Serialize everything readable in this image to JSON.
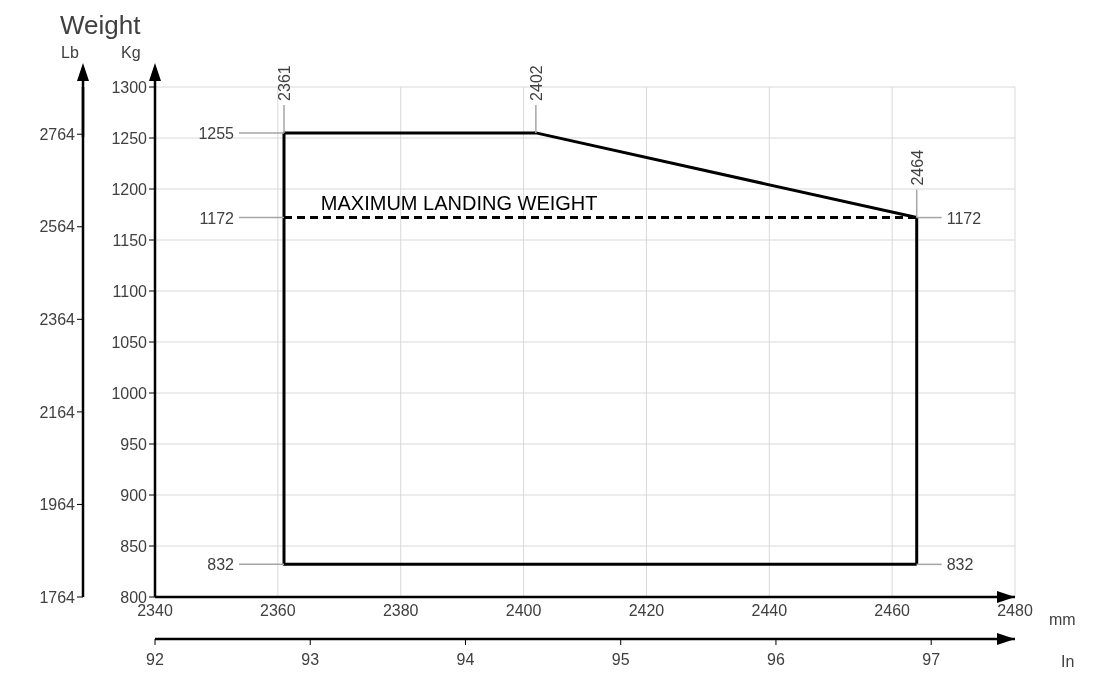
{
  "chart_data": {
    "type": "line",
    "title": "Weight",
    "xlabel": "mm",
    "x2label": "In",
    "ylabel": "Kg",
    "y2label": "Lb",
    "xlim": [
      2340,
      2480
    ],
    "xticks": [
      2340,
      2360,
      2380,
      2400,
      2420,
      2440,
      2460,
      2480
    ],
    "x2lim": [
      92,
      97.54
    ],
    "x2ticks": [
      92,
      93,
      94,
      95,
      96,
      97
    ],
    "ylim": [
      800,
      1300
    ],
    "yticks": [
      800,
      850,
      900,
      950,
      1000,
      1050,
      1100,
      1150,
      1200,
      1250,
      1300
    ],
    "y2lim": [
      1764,
      2866
    ],
    "y2ticks": [
      1764,
      1964,
      2164,
      2364,
      2564,
      2764
    ],
    "grid": true,
    "marker": "none",
    "line_style": "solid",
    "series": [
      {
        "color": "#000000",
        "x": [
          2464,
          2361,
          2361,
          2402,
          2464
        ],
        "values": [
          832,
          832,
          1255,
          1255,
          1172
        ]
      },
      {
        "color": "#000000",
        "x": [
          2464,
          2464
        ],
        "values": [
          1172,
          832
        ]
      },
      {
        "color": "#000000",
        "line_style": "dashed",
        "x": [
          2361,
          2464
        ],
        "values": [
          1172,
          1172
        ]
      }
    ],
    "annotations": [
      {
        "text": "MAXIMUM LANDING WEIGHT",
        "x": 2367,
        "y": 1172
      },
      {
        "text": "2361",
        "x": 2361,
        "y": 1255
      },
      {
        "text": "2402",
        "x": 2402,
        "y": 1255
      },
      {
        "text": "2464",
        "x": 2464,
        "y": 1172
      },
      {
        "text": "1255",
        "x": 2361,
        "y": 1255
      },
      {
        "text": "1172",
        "x": 2361,
        "y": 1172
      },
      {
        "text": "1172",
        "x": 2464,
        "y": 1172
      },
      {
        "text": "832",
        "x": 2361,
        "y": 832
      },
      {
        "text": "832",
        "x": 2464,
        "y": 832
      }
    ]
  }
}
